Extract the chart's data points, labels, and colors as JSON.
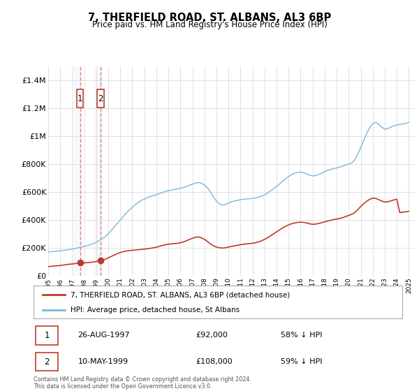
{
  "title": "7, THERFIELD ROAD, ST. ALBANS, AL3 6BP",
  "subtitle": "Price paid vs. HM Land Registry's House Price Index (HPI)",
  "hpi_label": "HPI: Average price, detached house, St Albans",
  "price_label": "7, THERFIELD ROAD, ST. ALBANS, AL3 6BP (detached house)",
  "hpi_color": "#7ab8d9",
  "price_color": "#c0392b",
  "dashed_color": "#e88080",
  "shade_color": "#cce0f0",
  "ylim": [
    0,
    1500000
  ],
  "yticks": [
    0,
    200000,
    400000,
    600000,
    800000,
    1000000,
    1200000,
    1400000
  ],
  "ytick_labels": [
    "£0",
    "£200K",
    "£400K",
    "£600K",
    "£800K",
    "£1M",
    "£1.2M",
    "£1.4M"
  ],
  "footer": "Contains HM Land Registry data © Crown copyright and database right 2024.\nThis data is licensed under the Open Government Licence v3.0.",
  "transactions": [
    {
      "date": 1997.65,
      "price": 92000,
      "label": "1",
      "pct": "58% ↓ HPI",
      "date_str": "26-AUG-1997"
    },
    {
      "date": 1999.36,
      "price": 108000,
      "label": "2",
      "pct": "59% ↓ HPI",
      "date_str": "10-MAY-1999"
    }
  ],
  "hpi_x": [
    1995.0,
    1995.25,
    1995.5,
    1995.75,
    1996.0,
    1996.25,
    1996.5,
    1996.75,
    1997.0,
    1997.25,
    1997.5,
    1997.75,
    1998.0,
    1998.25,
    1998.5,
    1998.75,
    1999.0,
    1999.25,
    1999.5,
    1999.75,
    2000.0,
    2000.25,
    2000.5,
    2000.75,
    2001.0,
    2001.25,
    2001.5,
    2001.75,
    2002.0,
    2002.25,
    2002.5,
    2002.75,
    2003.0,
    2003.25,
    2003.5,
    2003.75,
    2004.0,
    2004.25,
    2004.5,
    2004.75,
    2005.0,
    2005.25,
    2005.5,
    2005.75,
    2006.0,
    2006.25,
    2006.5,
    2006.75,
    2007.0,
    2007.25,
    2007.5,
    2007.75,
    2008.0,
    2008.25,
    2008.5,
    2008.75,
    2009.0,
    2009.25,
    2009.5,
    2009.75,
    2010.0,
    2010.25,
    2010.5,
    2010.75,
    2011.0,
    2011.25,
    2011.5,
    2011.75,
    2012.0,
    2012.25,
    2012.5,
    2012.75,
    2013.0,
    2013.25,
    2013.5,
    2013.75,
    2014.0,
    2014.25,
    2014.5,
    2014.75,
    2015.0,
    2015.25,
    2015.5,
    2015.75,
    2016.0,
    2016.25,
    2016.5,
    2016.75,
    2017.0,
    2017.25,
    2017.5,
    2017.75,
    2018.0,
    2018.25,
    2018.5,
    2018.75,
    2019.0,
    2019.25,
    2019.5,
    2019.75,
    2020.0,
    2020.25,
    2020.5,
    2020.75,
    2021.0,
    2021.25,
    2021.5,
    2021.75,
    2022.0,
    2022.25,
    2022.5,
    2022.75,
    2023.0,
    2023.25,
    2023.5,
    2023.75,
    2024.0,
    2024.25,
    2024.5,
    2024.75,
    2025.0
  ],
  "hpi_y": [
    170000,
    172000,
    174000,
    176000,
    178000,
    181000,
    184000,
    187000,
    190000,
    195000,
    200000,
    205000,
    210000,
    215000,
    222000,
    230000,
    240000,
    252000,
    265000,
    280000,
    300000,
    325000,
    350000,
    375000,
    400000,
    425000,
    450000,
    470000,
    490000,
    510000,
    525000,
    540000,
    550000,
    560000,
    568000,
    575000,
    580000,
    588000,
    596000,
    604000,
    610000,
    614000,
    618000,
    622000,
    626000,
    632000,
    640000,
    648000,
    656000,
    664000,
    668000,
    663000,
    650000,
    630000,
    600000,
    565000,
    535000,
    515000,
    505000,
    510000,
    520000,
    530000,
    535000,
    540000,
    545000,
    548000,
    550000,
    552000,
    554000,
    558000,
    563000,
    570000,
    580000,
    592000,
    608000,
    625000,
    640000,
    658000,
    676000,
    694000,
    710000,
    724000,
    735000,
    740000,
    742000,
    738000,
    730000,
    720000,
    715000,
    718000,
    725000,
    735000,
    745000,
    755000,
    762000,
    768000,
    772000,
    778000,
    785000,
    793000,
    800000,
    808000,
    830000,
    870000,
    920000,
    970000,
    1020000,
    1060000,
    1090000,
    1100000,
    1085000,
    1065000,
    1050000,
    1055000,
    1065000,
    1075000,
    1080000,
    1085000,
    1088000,
    1092000,
    1100000
  ],
  "price_y": [
    65000,
    67000,
    69000,
    71000,
    73000,
    76000,
    79000,
    82000,
    84000,
    87000,
    89000,
    91000,
    92000,
    93000,
    95000,
    98000,
    102000,
    106000,
    110000,
    118000,
    128000,
    138000,
    148000,
    158000,
    166000,
    172000,
    177000,
    180000,
    182000,
    184000,
    186000,
    188000,
    190000,
    193000,
    196000,
    200000,
    204000,
    210000,
    216000,
    222000,
    225000,
    228000,
    230000,
    232000,
    236000,
    242000,
    250000,
    260000,
    268000,
    275000,
    278000,
    271000,
    260000,
    245000,
    228000,
    214000,
    205000,
    200000,
    198000,
    200000,
    205000,
    210000,
    214000,
    218000,
    222000,
    225000,
    228000,
    230000,
    232000,
    236000,
    242000,
    250000,
    260000,
    272000,
    286000,
    300000,
    314000,
    328000,
    342000,
    354000,
    364000,
    372000,
    378000,
    382000,
    384000,
    382000,
    378000,
    372000,
    368000,
    370000,
    374000,
    380000,
    386000,
    392000,
    397000,
    402000,
    406000,
    410000,
    416000,
    424000,
    432000,
    440000,
    452000,
    472000,
    496000,
    516000,
    534000,
    548000,
    556000,
    554000,
    545000,
    535000,
    528000,
    530000,
    536000,
    543000,
    548000,
    452000,
    455000,
    458000,
    462000
  ],
  "xlim": [
    1995.0,
    2025.5
  ]
}
